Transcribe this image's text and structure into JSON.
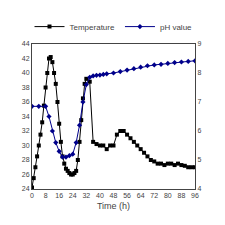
{
  "chart_data": {
    "type": "line",
    "xlabel": "Time (h)",
    "xlim": [
      0,
      96
    ],
    "ylim": [
      24,
      44
    ],
    "y2lim": [
      4,
      9
    ],
    "xticks": [
      0,
      8,
      16,
      24,
      32,
      40,
      48,
      56,
      64,
      72,
      80,
      88,
      96
    ],
    "yticks": [
      24,
      26,
      28,
      30,
      32,
      34,
      36,
      38,
      40,
      42,
      44
    ],
    "y2ticks": [
      4,
      5,
      6,
      7,
      8,
      9
    ],
    "grid": false,
    "legend": "top",
    "series": [
      {
        "name": "Temperature",
        "color": "#000000",
        "marker": "square",
        "x": [
          0,
          1,
          2,
          3,
          4,
          5,
          6,
          7,
          8,
          9,
          10,
          11,
          12,
          13,
          14,
          15,
          16,
          17,
          18,
          19,
          20,
          21,
          22,
          23,
          24,
          25,
          26,
          27,
          28,
          29,
          30,
          31,
          32,
          34,
          36,
          38,
          40,
          42,
          44,
          46,
          48,
          50,
          52,
          54,
          56,
          58,
          60,
          62,
          64,
          66,
          68,
          70,
          72,
          74,
          76,
          78,
          80,
          82,
          84,
          86,
          88,
          90,
          92,
          94,
          96
        ],
        "values": [
          24.2,
          25.5,
          27.0,
          28.5,
          30.0,
          31.5,
          33.2,
          35.5,
          38.0,
          40.0,
          42.0,
          42.2,
          41.5,
          40.0,
          38.5,
          36.0,
          33.0,
          30.5,
          28.5,
          27.5,
          26.8,
          26.5,
          26.2,
          26.0,
          26.0,
          26.2,
          26.5,
          28.0,
          30.5,
          33.5,
          36.5,
          38.5,
          39.2,
          38.8,
          30.5,
          30.2,
          30.0,
          30.0,
          29.5,
          30.0,
          30.0,
          31.5,
          32.0,
          32.0,
          31.5,
          31.0,
          30.5,
          30.0,
          29.5,
          29.0,
          28.5,
          28.0,
          27.8,
          27.5,
          27.5,
          27.3,
          27.5,
          27.5,
          27.3,
          27.5,
          27.3,
          27.2,
          27.0,
          27.0,
          27.0
        ]
      },
      {
        "name": "pH value",
        "color": "#00008B",
        "marker": "diamond",
        "axis": "y2",
        "x": [
          0,
          4,
          8,
          10,
          12,
          14,
          16,
          18,
          20,
          22,
          24,
          26,
          28,
          30,
          32,
          34,
          36,
          38,
          40,
          42,
          44,
          48,
          52,
          56,
          60,
          64,
          68,
          72,
          76,
          80,
          84,
          88,
          92,
          96
        ],
        "values": [
          6.85,
          6.85,
          6.85,
          6.5,
          6.0,
          5.6,
          5.3,
          5.1,
          5.1,
          5.15,
          5.2,
          5.6,
          6.2,
          7.0,
          7.6,
          7.85,
          7.9,
          7.92,
          7.93,
          7.95,
          7.97,
          8.0,
          8.05,
          8.1,
          8.15,
          8.2,
          8.25,
          8.28,
          8.3,
          8.33,
          8.36,
          8.38,
          8.4,
          8.42
        ]
      }
    ]
  }
}
